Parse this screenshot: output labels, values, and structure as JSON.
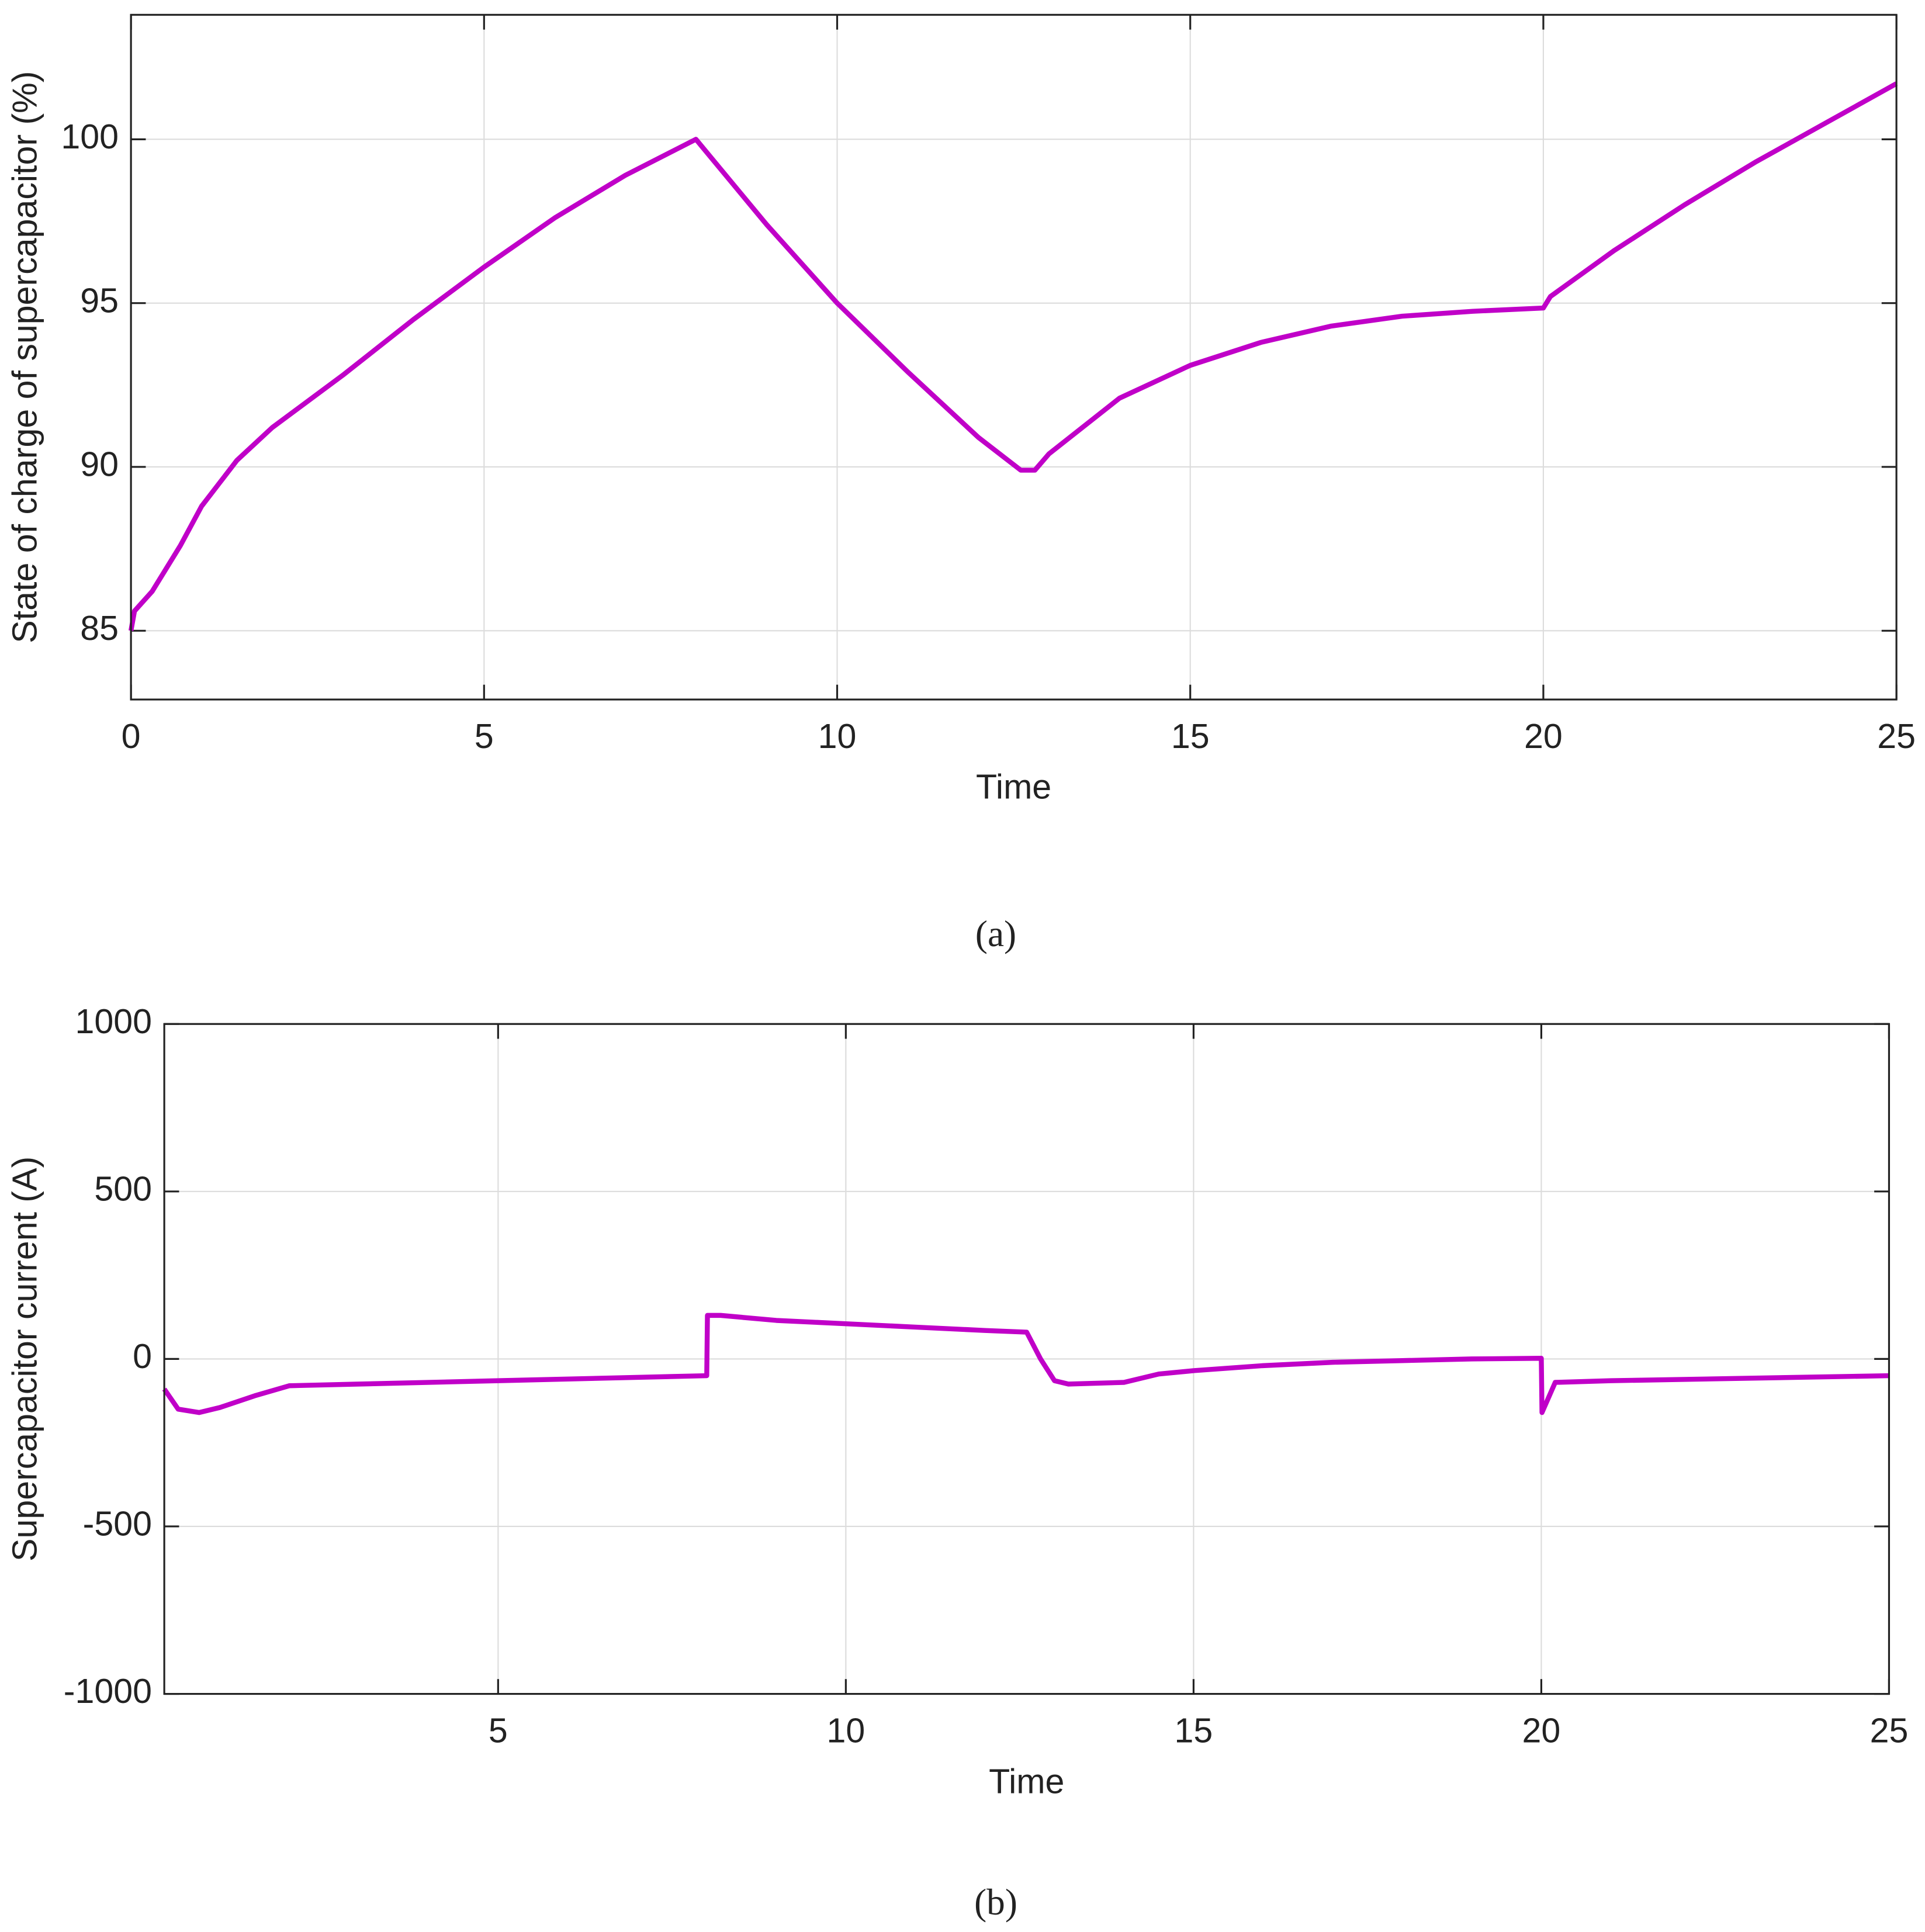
{
  "chart_data": [
    {
      "type": "line",
      "x_label": "Time",
      "y_label": "State of charge of supercapacitor (%)",
      "caption": "(a)",
      "xlim": [
        0,
        25
      ],
      "xticks": [
        0,
        5,
        10,
        15,
        20,
        25
      ],
      "ylim": [
        82.9,
        103.8
      ],
      "yticks": [
        85,
        90,
        95,
        100
      ],
      "grid": true,
      "color": "#c000c8",
      "x": [
        0,
        0.05,
        0.3,
        0.7,
        1,
        1.5,
        2,
        3,
        4,
        5,
        6,
        7,
        8,
        9,
        10,
        11,
        12,
        12.6,
        12.8,
        13,
        14,
        15,
        16,
        17,
        18,
        19,
        20,
        20.1,
        21,
        22,
        23,
        24,
        25
      ],
      "values": [
        85.0,
        85.6,
        86.2,
        87.6,
        88.8,
        90.2,
        91.2,
        92.8,
        94.5,
        96.1,
        97.6,
        98.9,
        100.0,
        97.4,
        95.0,
        92.9,
        90.9,
        89.9,
        89.9,
        90.4,
        92.1,
        93.1,
        93.8,
        94.3,
        94.6,
        94.75,
        94.85,
        95.2,
        96.6,
        98.0,
        99.3,
        100.5,
        101.7
      ]
    },
    {
      "type": "line",
      "x_label": "Time",
      "y_label": "Supercapacitor current (A)",
      "caption": "(b)",
      "xlim": [
        0.2,
        25
      ],
      "xticks": [
        5,
        10,
        15,
        20,
        25
      ],
      "ylim": [
        -1000,
        1000
      ],
      "yticks": [
        -1000,
        -500,
        0,
        500,
        1000
      ],
      "grid": true,
      "color": "#c000c8",
      "x": [
        0.2,
        0.4,
        0.7,
        1,
        1.5,
        2,
        3,
        5,
        8,
        8.01,
        8.2,
        9,
        10,
        11,
        12,
        12.6,
        12.8,
        13,
        13.2,
        14,
        14.5,
        15,
        16,
        17,
        18,
        19,
        20,
        20.01,
        20.2,
        21,
        25
      ],
      "values": [
        -90,
        -150,
        -160,
        -145,
        -110,
        -80,
        -75,
        -65,
        -50,
        130,
        130,
        115,
        105,
        95,
        85,
        80,
        0,
        -65,
        -75,
        -70,
        -45,
        -35,
        -20,
        -10,
        -5,
        0,
        2,
        -160,
        -70,
        -65,
        -50
      ]
    }
  ]
}
